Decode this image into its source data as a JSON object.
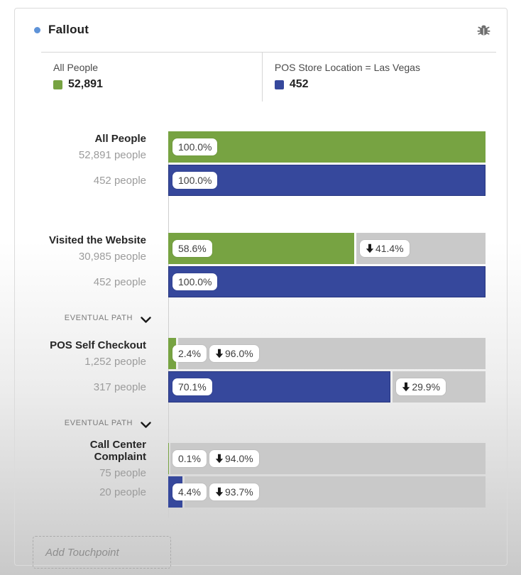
{
  "header": {
    "title": "Fallout",
    "bullet_color": "#5e93d8"
  },
  "icons": {
    "debug": "bug-icon",
    "eventual_path_chevron": "chevron-down-icon",
    "fallout_arrow": "down-arrow-icon"
  },
  "legend": {
    "items": [
      {
        "label": "All People",
        "value": "52,891",
        "color": "#77a342"
      },
      {
        "label": "POS Store Location = Las Vegas",
        "value": "452",
        "color": "#36489c"
      }
    ]
  },
  "chart_data": {
    "type": "bar",
    "subtype": "fallout",
    "eventual_path_label": "EVENTUAL PATH",
    "series": [
      {
        "name": "All People",
        "color": "#77a342"
      },
      {
        "name": "POS Store Location = Las Vegas",
        "color": "#36489c",
        "border": "#27367f"
      }
    ],
    "remainder_color": "#c9c9c9",
    "xlim": [
      0,
      100
    ],
    "steps": [
      {
        "label": "All People",
        "counts": [
          "52,891 people",
          "452 people"
        ],
        "values": [
          100.0,
          100.0
        ],
        "fallout": [
          null,
          null
        ],
        "eventual_path": false
      },
      {
        "label": "Visited the Website",
        "counts": [
          "30,985 people",
          "452 people"
        ],
        "values": [
          58.6,
          100.0
        ],
        "fallout": [
          41.4,
          null
        ],
        "eventual_path": true
      },
      {
        "label": "POS Self Checkout",
        "counts": [
          "1,252 people",
          "317 people"
        ],
        "values": [
          2.4,
          70.1
        ],
        "fallout": [
          96.0,
          29.9
        ],
        "eventual_path": true
      },
      {
        "label": "Call Center Complaint",
        "counts": [
          "75 people",
          "20 people"
        ],
        "values": [
          0.1,
          4.4
        ],
        "fallout": [
          94.0,
          93.7
        ],
        "eventual_path": false
      }
    ]
  },
  "footer": {
    "add_touchpoint_label": "Add Touchpoint"
  }
}
